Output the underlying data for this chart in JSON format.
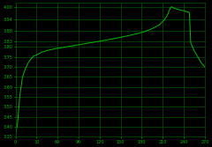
{
  "bg_color": "#000000",
  "line_color": "#00bb00",
  "grid_color": "#005500",
  "tick_color": "#00bb00",
  "xlim": [
    0,
    270
  ],
  "ylim": [
    3.35,
    4.02
  ],
  "xticks": [
    0,
    30,
    60,
    90,
    120,
    150,
    180,
    210,
    240,
    270
  ],
  "yticks": [
    3.35,
    3.4,
    3.45,
    3.5,
    3.55,
    3.6,
    3.65,
    3.7,
    3.75,
    3.8,
    3.83,
    3.88,
    3.94,
    4.0
  ],
  "curve_x": [
    0,
    3,
    6,
    10,
    14,
    18,
    22,
    26,
    30,
    38,
    45,
    55,
    65,
    75,
    85,
    95,
    105,
    115,
    125,
    135,
    145,
    155,
    165,
    175,
    185,
    195,
    205,
    212,
    216,
    218,
    220,
    221,
    222,
    223,
    224,
    225,
    226,
    228,
    230,
    232,
    235,
    238,
    240,
    242,
    244,
    246,
    248,
    250,
    255,
    260,
    265,
    270
  ],
  "curve_y": [
    3.36,
    3.42,
    3.55,
    3.65,
    3.69,
    3.72,
    3.74,
    3.755,
    3.76,
    3.775,
    3.782,
    3.79,
    3.796,
    3.802,
    3.808,
    3.814,
    3.82,
    3.826,
    3.832,
    3.838,
    3.845,
    3.852,
    3.86,
    3.868,
    3.878,
    3.892,
    3.91,
    3.935,
    3.955,
    3.972,
    3.988,
    3.996,
    4.0,
    4.001,
    3.999,
    3.997,
    3.995,
    3.992,
    3.99,
    3.988,
    3.985,
    3.983,
    3.981,
    3.979,
    3.977,
    3.975,
    3.972,
    3.82,
    3.78,
    3.75,
    3.72,
    3.7
  ]
}
